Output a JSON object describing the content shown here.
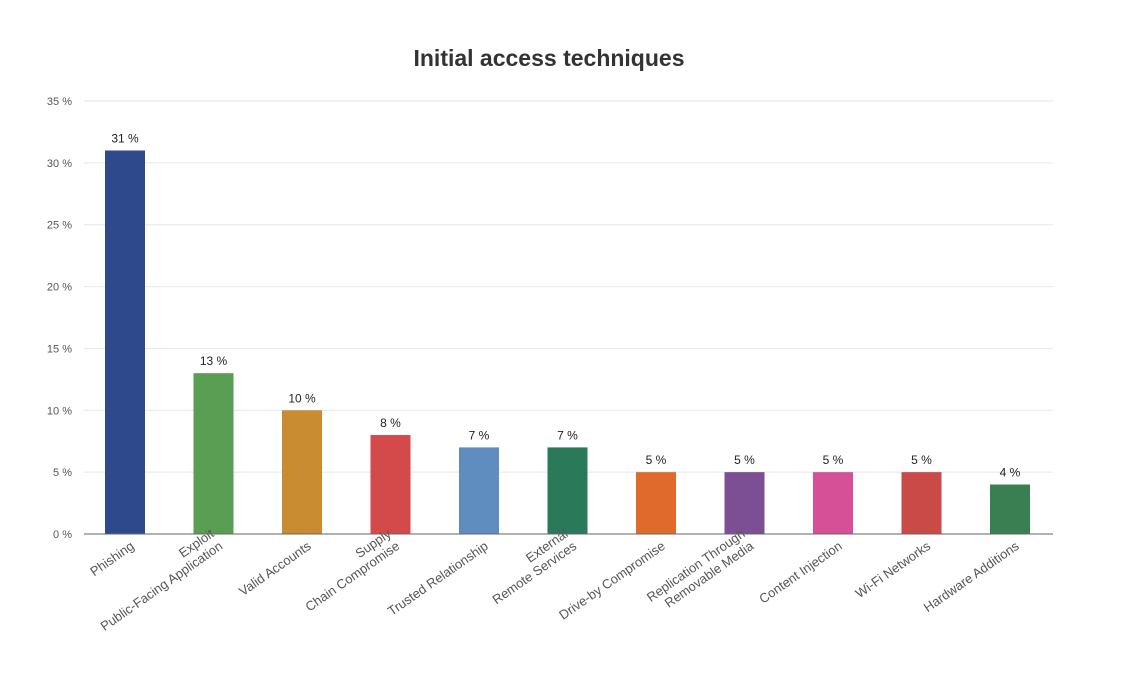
{
  "chart_data": {
    "type": "bar",
    "title": "Initial access techniques",
    "xlabel": "",
    "ylabel": "",
    "ylim": [
      0,
      35
    ],
    "yticks": [
      0,
      5,
      10,
      15,
      20,
      25,
      30,
      35
    ],
    "y_unit_suffix": " %",
    "grid": true,
    "legend": "none",
    "categories": [
      [
        "Phishing"
      ],
      [
        "Exploit",
        "Public-Facing Application"
      ],
      [
        "Valid Accounts"
      ],
      [
        "Supply",
        "Chain Compromise"
      ],
      [
        "Trusted Relationship"
      ],
      [
        "External",
        "Remote Services"
      ],
      [
        "Drive-by Compromise"
      ],
      [
        "Replication Through",
        "Removable Media"
      ],
      [
        "Content Injection"
      ],
      [
        "Wi-Fi Networks"
      ],
      [
        "Hardware Additions"
      ]
    ],
    "values": [
      31,
      13,
      10,
      8,
      7,
      7,
      5,
      5,
      5,
      5,
      4
    ],
    "data_labels": [
      "31 %",
      "13 %",
      "10 %",
      "8 %",
      "7 %",
      "7 %",
      "5 %",
      "5 %",
      "5 %",
      "5 %",
      "4 %"
    ],
    "colors": [
      "#2e4a8c",
      "#5a9e54",
      "#c98c31",
      "#d44a4a",
      "#5f8dc0",
      "#2a7a5a",
      "#e06a2c",
      "#7c4f94",
      "#d65097",
      "#c94a46",
      "#3a7f52"
    ]
  }
}
